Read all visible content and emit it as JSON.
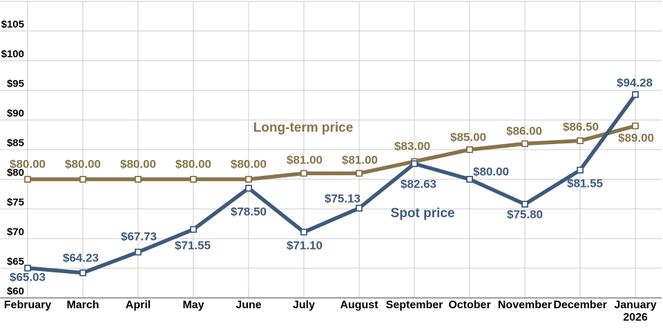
{
  "chart_data": {
    "type": "line",
    "categories": [
      "February",
      "March",
      "April",
      "May",
      "June",
      "July",
      "August",
      "September",
      "October",
      "November",
      "December",
      "January\n2026"
    ],
    "y_axis": {
      "min": 60,
      "max": 110,
      "tick_step": 5,
      "tick_labels": [
        "$60",
        "$65",
        "$70",
        "$75",
        "$80",
        "$85",
        "$90",
        "$95",
        "$100",
        "$105"
      ],
      "tick_values": [
        60,
        65,
        70,
        75,
        80,
        85,
        90,
        95,
        100,
        105
      ]
    },
    "grid": true,
    "legend_position": "inline-annotations",
    "series": [
      {
        "name": "Long-term price",
        "color": "#8A7349",
        "values": [
          80,
          80,
          80,
          80,
          80,
          81,
          81,
          83,
          85,
          86,
          86.5,
          89
        ],
        "point_labels": [
          "$80.00",
          "$80.00",
          "$80.00",
          "$80.00",
          "$80.00",
          "$81.00",
          "$81.00",
          "$83.00",
          "$85.00",
          "$86.00",
          "$86.50",
          "$89.00"
        ]
      },
      {
        "name": "Spot price",
        "color": "#3D5A7E",
        "values": [
          65.03,
          64.23,
          67.73,
          71.55,
          78.5,
          71.1,
          75.13,
          82.63,
          80.0,
          75.8,
          81.55,
          94.28
        ],
        "point_labels": [
          "$65.03",
          "$64.23",
          "$67.73",
          "$71.55",
          "$78.50",
          "$71.10",
          "$75.13",
          "$82.63",
          "$80.00",
          "$75.80",
          "$81.55",
          "$94.28"
        ]
      }
    ],
    "colors": {
      "gridline": "#CBCBCB",
      "axis_line": "#7F7F7F",
      "axis_text": "#000000",
      "marker_fill": "#FFFFFF"
    }
  }
}
